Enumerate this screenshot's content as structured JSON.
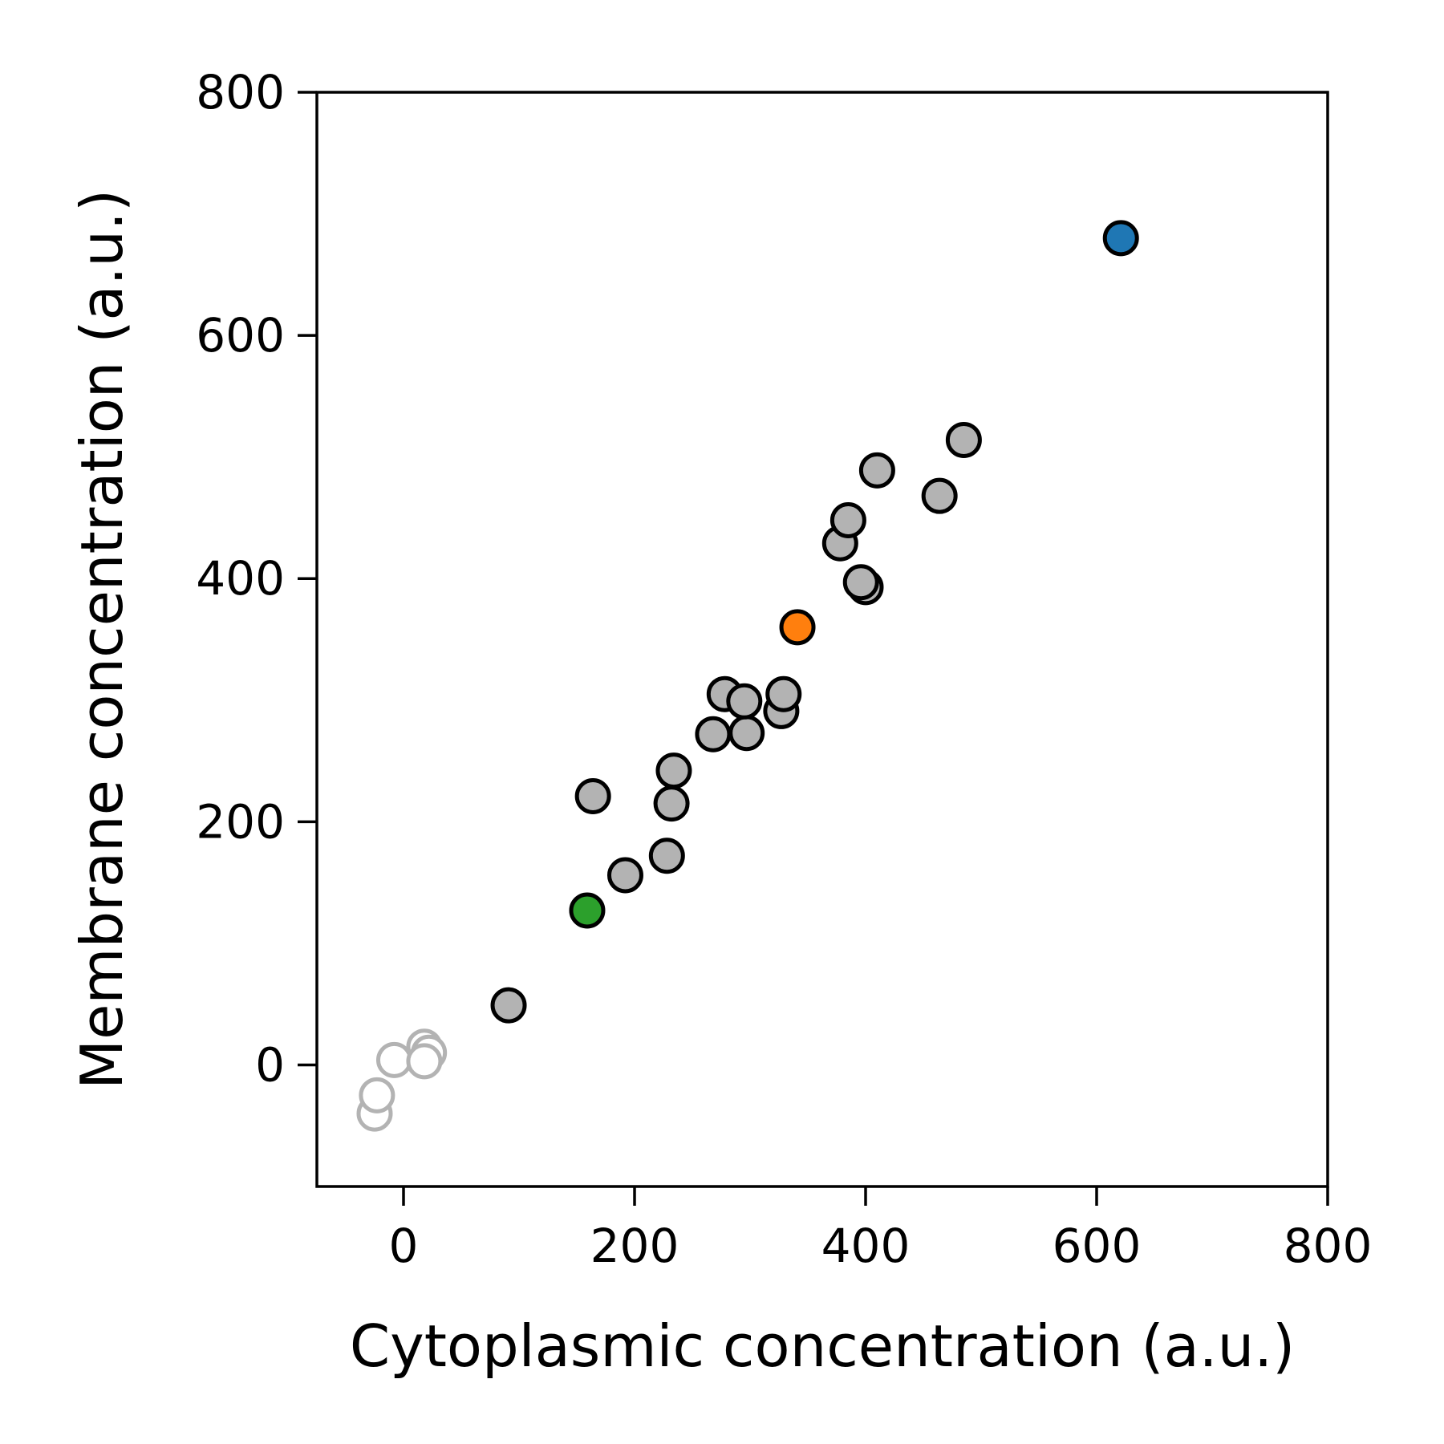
{
  "chart_data": {
    "type": "scatter",
    "title": "",
    "xlabel": "Cytoplasmic concentration (a.u.)",
    "ylabel": "Membrane concentration (a.u.)",
    "xlim": [
      -75,
      800
    ],
    "ylim": [
      -100,
      800
    ],
    "xticks": [
      0,
      200,
      400,
      600,
      800
    ],
    "yticks": [
      0,
      200,
      400,
      600,
      800
    ],
    "grid": false,
    "colors": {
      "gray_fill": "#b3b3b3",
      "edge": "#000000",
      "hollow_edge": "#b3b3b3",
      "blue": "#1f77b4",
      "orange": "#ff7f0e",
      "green": "#2ca02c"
    },
    "series": [
      {
        "style": "hollow",
        "points": [
          {
            "x": -25,
            "y": -40
          },
          {
            "x": -23,
            "y": -25
          },
          {
            "x": -8,
            "y": 4
          },
          {
            "x": 18,
            "y": 15
          },
          {
            "x": 22,
            "y": 10
          },
          {
            "x": 18,
            "y": 3
          }
        ]
      },
      {
        "style": "gray",
        "points": [
          {
            "x": 91,
            "y": 49
          },
          {
            "x": 192,
            "y": 156
          },
          {
            "x": 164,
            "y": 221
          },
          {
            "x": 228,
            "y": 172
          },
          {
            "x": 232,
            "y": 215
          },
          {
            "x": 234,
            "y": 242
          },
          {
            "x": 268,
            "y": 272
          },
          {
            "x": 278,
            "y": 305
          },
          {
            "x": 297,
            "y": 273
          },
          {
            "x": 295,
            "y": 299
          },
          {
            "x": 327,
            "y": 291
          },
          {
            "x": 329,
            "y": 305
          },
          {
            "x": 378,
            "y": 429
          },
          {
            "x": 385,
            "y": 448
          },
          {
            "x": 400,
            "y": 393
          },
          {
            "x": 396,
            "y": 397
          },
          {
            "x": 410,
            "y": 489
          },
          {
            "x": 464,
            "y": 468
          },
          {
            "x": 485,
            "y": 514
          }
        ]
      },
      {
        "style": "blue",
        "points": [
          {
            "x": 621,
            "y": 680
          }
        ]
      },
      {
        "style": "orange",
        "points": [
          {
            "x": 341,
            "y": 360
          }
        ]
      },
      {
        "style": "green",
        "points": [
          {
            "x": 159,
            "y": 127
          }
        ]
      }
    ]
  }
}
